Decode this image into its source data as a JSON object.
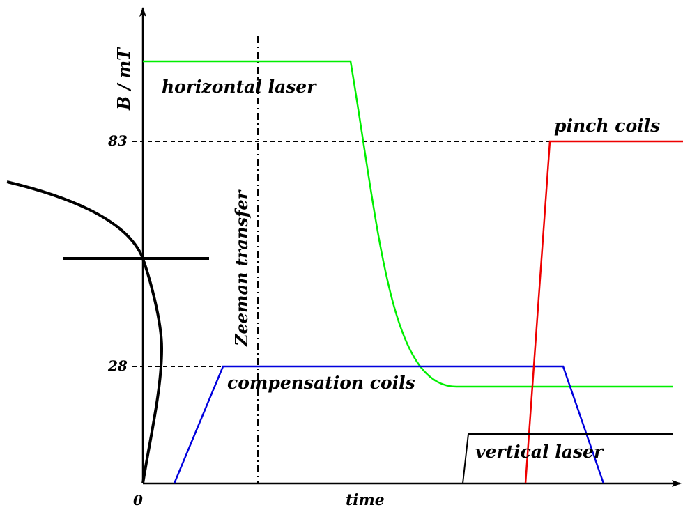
{
  "axes": {
    "y_label": "B / mT",
    "x_label": "time",
    "origin_label": "0",
    "tick_83": "83",
    "tick_28": "28"
  },
  "labels": {
    "horizontal_laser": "horizontal laser",
    "pinch_coils": "pinch coils",
    "compensation_coils": "compensation coils",
    "vertical_laser": "vertical laser",
    "zeeman_transfer": "Zeeman transfer"
  },
  "colors": {
    "horizontal_laser": "#00ee00",
    "pinch_coils": "#ee0000",
    "compensation_coils": "#0000dd",
    "vertical_laser": "#000000",
    "axes": "#000000"
  }
}
